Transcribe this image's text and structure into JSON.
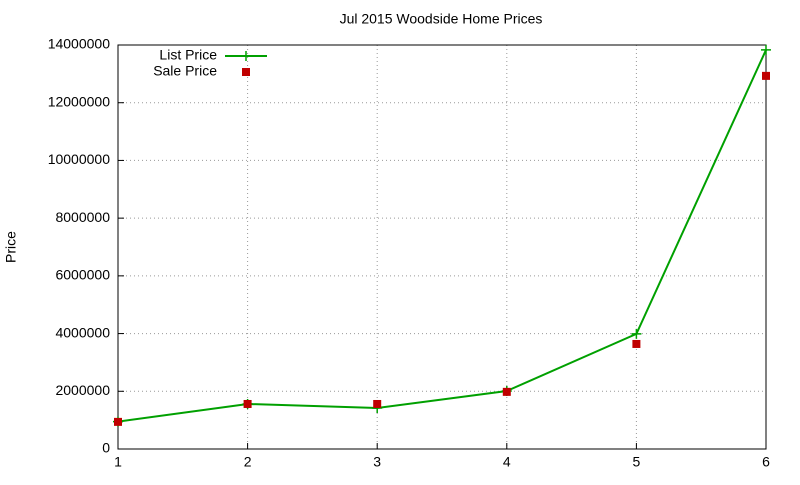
{
  "chart_data": {
    "type": "line",
    "title": "Jul 2015 Woodside Home Prices",
    "y_label": "Price",
    "x": [
      1,
      2,
      3,
      4,
      5,
      6
    ],
    "series": [
      {
        "name": "List Price",
        "color": "#00a000",
        "style": "linespoints",
        "values": [
          950000,
          1560000,
          1420000,
          2010000,
          3990000,
          13830000
        ]
      },
      {
        "name": "Sale Price",
        "color": "#c00000",
        "style": "points",
        "values": [
          940000,
          1560000,
          1560000,
          1980000,
          3640000,
          12930000
        ]
      }
    ],
    "xlim": [
      1,
      6
    ],
    "xticks": [
      1,
      2,
      3,
      4,
      5,
      6
    ],
    "ylim": [
      0,
      14000000
    ],
    "yticks": [
      0,
      2000000,
      4000000,
      6000000,
      8000000,
      10000000,
      12000000,
      14000000
    ],
    "grid": true,
    "legend": "top-left"
  }
}
